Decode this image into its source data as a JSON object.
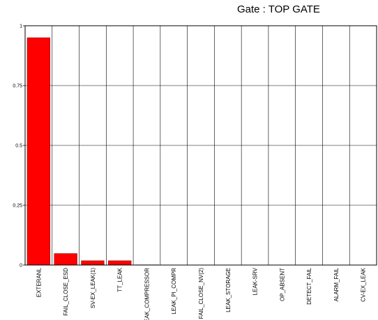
{
  "chart_data": {
    "type": "bar",
    "title": "Gate : TOP GATE",
    "categories": [
      "EXTERANL",
      "FAIL_CLOSE_ESD",
      "SV-EX_LEAK(1)",
      "TT_LEAK",
      "LEAK_COMPRESSOR",
      "LEAK_PI_COMPR",
      "FAIL_CLOSE_NV(2)",
      "LEAK_STORAGE",
      "LEAK-SRV",
      "OP_ABSENT",
      "DETECT_FAIL",
      "ALARM_FAIL",
      "CV-EX_LEAK"
    ],
    "values": [
      0.95,
      0.048,
      0.018,
      0.018,
      0.001,
      0.0005,
      0.0,
      0.0,
      0.0,
      0.0,
      0.0,
      0.0,
      0.0
    ],
    "ylim": [
      0,
      1
    ],
    "yticks": [
      0,
      0.25,
      0.5,
      0.75,
      1
    ],
    "ytick_labels": [
      "0",
      "0.25",
      "0.5",
      "0.75",
      "1"
    ],
    "xlabel": "",
    "ylabel": "",
    "grid": true,
    "bar_color": "#ff0000",
    "bar_edge_color": "#7a0000"
  }
}
